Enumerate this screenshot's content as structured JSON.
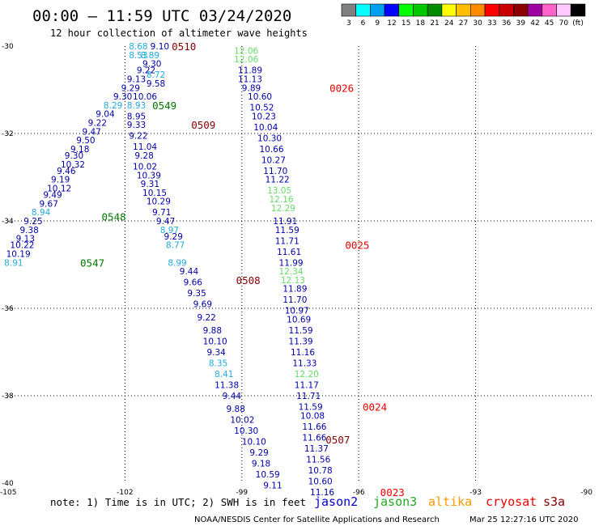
{
  "header": {
    "title": "00:00 – 11:59 UTC 03/24/2020",
    "subtitle": "12 hour collection of altimeter wave heights"
  },
  "legend": {
    "colors": [
      "#808080",
      "#00ffff",
      "#00a0f0",
      "#0000ff",
      "#00ff00",
      "#00c800",
      "#008c00",
      "#ffff00",
      "#ffbf00",
      "#ff8c00",
      "#ff0000",
      "#c80000",
      "#8c0000",
      "#a000a0",
      "#ff64c8",
      "#ffc8ff",
      "#000000"
    ],
    "labels": [
      "3",
      "6",
      "9",
      "12",
      "15",
      "18",
      "21",
      "24",
      "27",
      "30",
      "33",
      "36",
      "39",
      "42",
      "45",
      "70",
      "(ft)"
    ]
  },
  "axes": {
    "y_labels": [
      "-30",
      "-32",
      "-34",
      "-36",
      "-38",
      "-40"
    ],
    "x_labels": [
      "-105",
      "-102",
      "-99",
      "-96",
      "-93",
      "-90"
    ]
  },
  "chart_data": {
    "type": "scatter",
    "title": "00:00 – 11:59 UTC 03/24/2020",
    "subtitle": "12 hour collection of altimeter wave heights",
    "xlim": [
      -105,
      -90
    ],
    "ylim": [
      -40,
      -30
    ],
    "grid": true,
    "colors": {
      "blue": "#0000aa",
      "cyan": "#22aadd",
      "lightgreen": "#66dd66",
      "green": "#007700",
      "darkred": "#880000",
      "red": "#ee0000"
    },
    "values": [
      {
        "text": "8.68",
        "lon": -101.9,
        "lat": -30.0,
        "color": "cyan"
      },
      {
        "text": "9.10",
        "lon": -101.35,
        "lat": -30.0,
        "color": "blue"
      },
      {
        "text": "8.53",
        "lon": -101.9,
        "lat": -30.2,
        "color": "cyan"
      },
      {
        "text": "8.89",
        "lon": -101.6,
        "lat": -30.2,
        "color": "cyan"
      },
      {
        "text": "9.30",
        "lon": -101.55,
        "lat": -30.4,
        "color": "blue"
      },
      {
        "text": "9.22",
        "lon": -101.7,
        "lat": -30.55,
        "color": "blue"
      },
      {
        "text": "8.72",
        "lon": -101.45,
        "lat": -30.65,
        "color": "cyan"
      },
      {
        "text": "9.13",
        "lon": -101.95,
        "lat": -30.75,
        "color": "blue"
      },
      {
        "text": "9.58",
        "lon": -101.45,
        "lat": -30.85,
        "color": "blue"
      },
      {
        "text": "9.29",
        "lon": -102.1,
        "lat": -30.95,
        "color": "blue"
      },
      {
        "text": "9.30",
        "lon": -102.3,
        "lat": -31.15,
        "color": "blue"
      },
      {
        "text": "10.06",
        "lon": -101.8,
        "lat": -31.15,
        "color": "blue"
      },
      {
        "text": "8.29",
        "lon": -102.55,
        "lat": -31.35,
        "color": "cyan"
      },
      {
        "text": "8.93",
        "lon": -101.95,
        "lat": -31.35,
        "color": "cyan"
      },
      {
        "text": "9.04",
        "lon": -102.75,
        "lat": -31.55,
        "color": "blue"
      },
      {
        "text": "8.95",
        "lon": -101.95,
        "lat": -31.6,
        "color": "blue"
      },
      {
        "text": "9.22",
        "lon": -102.95,
        "lat": -31.75,
        "color": "blue"
      },
      {
        "text": "9.33",
        "lon": -101.95,
        "lat": -31.8,
        "color": "blue"
      },
      {
        "text": "9.47",
        "lon": -103.1,
        "lat": -31.95,
        "color": "blue"
      },
      {
        "text": "9.22",
        "lon": -101.9,
        "lat": -32.05,
        "color": "blue"
      },
      {
        "text": "9.50",
        "lon": -103.25,
        "lat": -32.15,
        "color": "blue"
      },
      {
        "text": "11.04",
        "lon": -101.8,
        "lat": -32.3,
        "color": "blue"
      },
      {
        "text": "9.18",
        "lon": -103.4,
        "lat": -32.35,
        "color": "blue"
      },
      {
        "text": "9.30",
        "lon": -103.55,
        "lat": -32.5,
        "color": "blue"
      },
      {
        "text": "9.28",
        "lon": -101.75,
        "lat": -32.5,
        "color": "blue"
      },
      {
        "text": "10.32",
        "lon": -103.65,
        "lat": -32.7,
        "color": "blue"
      },
      {
        "text": "10.02",
        "lon": -101.8,
        "lat": -32.75,
        "color": "blue"
      },
      {
        "text": "9.46",
        "lon": -103.75,
        "lat": -32.85,
        "color": "blue"
      },
      {
        "text": "10.39",
        "lon": -101.7,
        "lat": -32.95,
        "color": "blue"
      },
      {
        "text": "9.19",
        "lon": -103.9,
        "lat": -33.05,
        "color": "blue"
      },
      {
        "text": "9.31",
        "lon": -101.6,
        "lat": -33.15,
        "color": "blue"
      },
      {
        "text": "10.12",
        "lon": -104.0,
        "lat": -33.25,
        "color": "blue"
      },
      {
        "text": "10.15",
        "lon": -101.55,
        "lat": -33.35,
        "color": "blue"
      },
      {
        "text": "9.49",
        "lon": -104.1,
        "lat": -33.4,
        "color": "blue"
      },
      {
        "text": "10.29",
        "lon": -101.45,
        "lat": -33.55,
        "color": "blue"
      },
      {
        "text": "9.67",
        "lon": -104.2,
        "lat": -33.6,
        "color": "blue"
      },
      {
        "text": "8.94",
        "lon": -104.4,
        "lat": -33.8,
        "color": "cyan"
      },
      {
        "text": "9.71",
        "lon": -101.3,
        "lat": -33.8,
        "color": "blue"
      },
      {
        "text": "9.25",
        "lon": -104.6,
        "lat": -34.0,
        "color": "blue"
      },
      {
        "text": "9.47",
        "lon": -101.2,
        "lat": -34.0,
        "color": "blue"
      },
      {
        "text": "9.38",
        "lon": -104.7,
        "lat": -34.2,
        "color": "blue"
      },
      {
        "text": "8.97",
        "lon": -101.1,
        "lat": -34.2,
        "color": "cyan"
      },
      {
        "text": "9.13",
        "lon": -104.8,
        "lat": -34.4,
        "color": "blue"
      },
      {
        "text": "9.29",
        "lon": -101.0,
        "lat": -34.35,
        "color": "blue"
      },
      {
        "text": "10.22",
        "lon": -104.95,
        "lat": -34.55,
        "color": "blue"
      },
      {
        "text": "8.77",
        "lon": -100.95,
        "lat": -34.55,
        "color": "cyan"
      },
      {
        "text": "10.19",
        "lon": -105.05,
        "lat": -34.75,
        "color": "blue"
      },
      {
        "text": "8.91",
        "lon": -105.1,
        "lat": -34.95,
        "color": "cyan"
      },
      {
        "text": "8.99",
        "lon": -100.9,
        "lat": -34.95,
        "color": "cyan"
      },
      {
        "text": "9.44",
        "lon": -100.6,
        "lat": -35.15,
        "color": "blue"
      },
      {
        "text": "9.66",
        "lon": -100.5,
        "lat": -35.4,
        "color": "blue"
      },
      {
        "text": "9.35",
        "lon": -100.4,
        "lat": -35.65,
        "color": "blue"
      },
      {
        "text": "9.69",
        "lon": -100.25,
        "lat": -35.9,
        "color": "blue"
      },
      {
        "text": "9.22",
        "lon": -100.15,
        "lat": -36.2,
        "color": "blue"
      },
      {
        "text": "9.88",
        "lon": -100.0,
        "lat": -36.5,
        "color": "blue"
      },
      {
        "text": "10.10",
        "lon": -100.0,
        "lat": -36.75,
        "color": "blue"
      },
      {
        "text": "9.34",
        "lon": -99.9,
        "lat": -37.0,
        "color": "blue"
      },
      {
        "text": "8.35",
        "lon": -99.85,
        "lat": -37.25,
        "color": "cyan"
      },
      {
        "text": "8.41",
        "lon": -99.7,
        "lat": -37.5,
        "color": "cyan"
      },
      {
        "text": "11.38",
        "lon": -99.7,
        "lat": -37.75,
        "color": "blue"
      },
      {
        "text": "9.44",
        "lon": -99.5,
        "lat": -38.0,
        "color": "blue"
      },
      {
        "text": "9.88",
        "lon": -99.4,
        "lat": -38.3,
        "color": "blue"
      },
      {
        "text": "10.02",
        "lon": -99.3,
        "lat": -38.55,
        "color": "blue"
      },
      {
        "text": "10.30",
        "lon": -99.2,
        "lat": -38.8,
        "color": "blue"
      },
      {
        "text": "10.10",
        "lon": -99.0,
        "lat": -39.05,
        "color": "blue"
      },
      {
        "text": "9.29",
        "lon": -98.8,
        "lat": -39.3,
        "color": "blue"
      },
      {
        "text": "9.18",
        "lon": -98.75,
        "lat": -39.55,
        "color": "blue"
      },
      {
        "text": "10.59",
        "lon": -98.65,
        "lat": -39.8,
        "color": "blue"
      },
      {
        "text": "9.11",
        "lon": -98.45,
        "lat": -40.05,
        "color": "blue"
      },
      {
        "text": "12.06",
        "lon": -99.2,
        "lat": -30.1,
        "color": "lightgreen"
      },
      {
        "text": "12.06",
        "lon": -99.2,
        "lat": -30.3,
        "color": "lightgreen"
      },
      {
        "text": "11.89",
        "lon": -99.1,
        "lat": -30.55,
        "color": "blue"
      },
      {
        "text": "11.13",
        "lon": -99.1,
        "lat": -30.75,
        "color": "blue"
      },
      {
        "text": "9.89",
        "lon": -99.0,
        "lat": -30.95,
        "color": "blue"
      },
      {
        "text": "10.60",
        "lon": -98.85,
        "lat": -31.15,
        "color": "blue"
      },
      {
        "text": "10.52",
        "lon": -98.8,
        "lat": -31.4,
        "color": "blue"
      },
      {
        "text": "10.23",
        "lon": -98.75,
        "lat": -31.6,
        "color": "blue"
      },
      {
        "text": "10.04",
        "lon": -98.7,
        "lat": -31.85,
        "color": "blue"
      },
      {
        "text": "10.30",
        "lon": -98.6,
        "lat": -32.1,
        "color": "blue"
      },
      {
        "text": "10.66",
        "lon": -98.55,
        "lat": -32.35,
        "color": "blue"
      },
      {
        "text": "10.27",
        "lon": -98.5,
        "lat": -32.6,
        "color": "blue"
      },
      {
        "text": "11.70",
        "lon": -98.45,
        "lat": -32.85,
        "color": "blue"
      },
      {
        "text": "11.22",
        "lon": -98.4,
        "lat": -33.05,
        "color": "blue"
      },
      {
        "text": "13.05",
        "lon": -98.35,
        "lat": -33.3,
        "color": "lightgreen"
      },
      {
        "text": "12.16",
        "lon": -98.3,
        "lat": -33.5,
        "color": "lightgreen"
      },
      {
        "text": "12.29",
        "lon": -98.25,
        "lat": -33.7,
        "color": "lightgreen"
      },
      {
        "text": "11.91",
        "lon": -98.2,
        "lat": -34.0,
        "color": "blue"
      },
      {
        "text": "11.59",
        "lon": -98.15,
        "lat": -34.2,
        "color": "blue"
      },
      {
        "text": "11.71",
        "lon": -98.15,
        "lat": -34.45,
        "color": "blue"
      },
      {
        "text": "11.61",
        "lon": -98.1,
        "lat": -34.7,
        "color": "blue"
      },
      {
        "text": "11.99",
        "lon": -98.05,
        "lat": -34.95,
        "color": "blue"
      },
      {
        "text": "12.34",
        "lon": -98.05,
        "lat": -35.15,
        "color": "lightgreen"
      },
      {
        "text": "12.13",
        "lon": -98.0,
        "lat": -35.35,
        "color": "lightgreen"
      },
      {
        "text": "11.89",
        "lon": -97.95,
        "lat": -35.55,
        "color": "blue"
      },
      {
        "text": "11.70",
        "lon": -97.95,
        "lat": -35.8,
        "color": "blue"
      },
      {
        "text": "10.97",
        "lon": -97.9,
        "lat": -36.05,
        "color": "blue"
      },
      {
        "text": "10.69",
        "lon": -97.85,
        "lat": -36.25,
        "color": "blue"
      },
      {
        "text": "11.59",
        "lon": -97.8,
        "lat": -36.5,
        "color": "blue"
      },
      {
        "text": "11.39",
        "lon": -97.8,
        "lat": -36.75,
        "color": "blue"
      },
      {
        "text": "11.16",
        "lon": -97.75,
        "lat": -37.0,
        "color": "blue"
      },
      {
        "text": "11.33",
        "lon": -97.7,
        "lat": -37.25,
        "color": "blue"
      },
      {
        "text": "12.20",
        "lon": -97.65,
        "lat": -37.5,
        "color": "lightgreen"
      },
      {
        "text": "11.17",
        "lon": -97.65,
        "lat": -37.75,
        "color": "blue"
      },
      {
        "text": "11.71",
        "lon": -97.6,
        "lat": -38.0,
        "color": "blue"
      },
      {
        "text": "11.59",
        "lon": -97.55,
        "lat": -38.25,
        "color": "blue"
      },
      {
        "text": "10.08",
        "lon": -97.5,
        "lat": -38.45,
        "color": "blue"
      },
      {
        "text": "11.66",
        "lon": -97.45,
        "lat": -38.7,
        "color": "blue"
      },
      {
        "text": "11.66",
        "lon": -97.45,
        "lat": -38.95,
        "color": "blue"
      },
      {
        "text": "11.37",
        "lon": -97.4,
        "lat": -39.2,
        "color": "blue"
      },
      {
        "text": "11.56",
        "lon": -97.35,
        "lat": -39.45,
        "color": "blue"
      },
      {
        "text": "10.78",
        "lon": -97.3,
        "lat": -39.7,
        "color": "blue"
      },
      {
        "text": "10.60",
        "lon": -97.3,
        "lat": -39.95,
        "color": "blue"
      },
      {
        "text": "11.16",
        "lon": -97.25,
        "lat": -40.2,
        "color": "blue"
      }
    ],
    "times": [
      {
        "text": "0510",
        "lon": -100.8,
        "lat": -30.0,
        "color": "darkred"
      },
      {
        "text": "0549",
        "lon": -101.3,
        "lat": -31.35,
        "color": "green"
      },
      {
        "text": "0509",
        "lon": -100.3,
        "lat": -31.8,
        "color": "darkred"
      },
      {
        "text": "0548",
        "lon": -102.6,
        "lat": -33.9,
        "color": "green"
      },
      {
        "text": "0547",
        "lon": -103.15,
        "lat": -34.95,
        "color": "green"
      },
      {
        "text": "0508",
        "lon": -99.15,
        "lat": -35.35,
        "color": "darkred"
      },
      {
        "text": "0026",
        "lon": -96.75,
        "lat": -30.95,
        "color": "red"
      },
      {
        "text": "0025",
        "lon": -96.35,
        "lat": -34.55,
        "color": "red"
      },
      {
        "text": "0507",
        "lon": -96.85,
        "lat": -39.0,
        "color": "darkred"
      },
      {
        "text": "0024",
        "lon": -95.9,
        "lat": -38.25,
        "color": "red"
      },
      {
        "text": "0023",
        "lon": -95.45,
        "lat": -40.2,
        "color": "red"
      }
    ]
  },
  "footer": {
    "note": "note: 1) Time is in UTC; 2) SWH is in feet",
    "satellites": [
      {
        "name": "jason2",
        "color": "#0000cc"
      },
      {
        "name": "jason3",
        "color": "#22aa22"
      },
      {
        "name": "altika",
        "color": "#ff9900"
      },
      {
        "name": "cryosat",
        "color": "#ee0000"
      },
      {
        "name": "s3a",
        "color": "#880000"
      }
    ],
    "credit": "NOAA/NESDIS Center for Satellite Applications and Research",
    "timestamp": "Mar 25 12:27:16 UTC 2020"
  }
}
